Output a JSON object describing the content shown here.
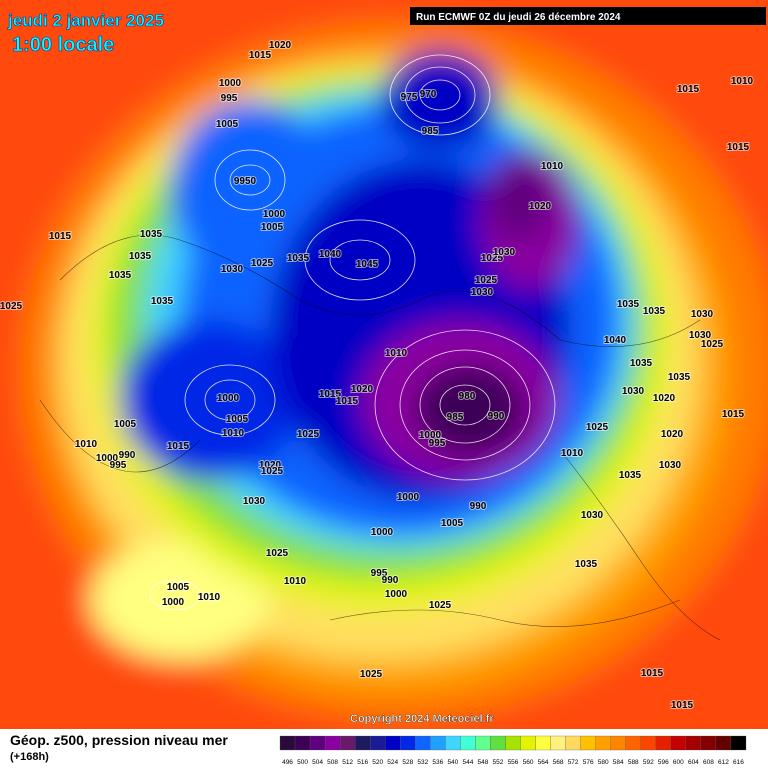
{
  "header": {
    "title": "jeudi 2 janvier 2025",
    "time": "1:00 locale",
    "run": "Run ECMWF 0Z du jeudi 26 décembre 2024"
  },
  "copyright": "Copyright 2024 Meteociel.fr",
  "footer": {
    "label": "Géop. z500, pression niveau mer",
    "lead": "(+168h)"
  },
  "colorbar": {
    "values": [
      496,
      500,
      504,
      508,
      512,
      516,
      520,
      524,
      528,
      532,
      536,
      540,
      544,
      548,
      552,
      556,
      560,
      564,
      568,
      572,
      576,
      580,
      584,
      588,
      592,
      596,
      600,
      604,
      608,
      612,
      616
    ],
    "colors": [
      "#2a0a3a",
      "#3c0058",
      "#60007e",
      "#8a00a0",
      "#6a1a6a",
      "#1e1a5e",
      "#1a1a94",
      "#0000c4",
      "#0028e6",
      "#1064ff",
      "#20a0ff",
      "#40d4ff",
      "#40ffd4",
      "#60ff90",
      "#60e040",
      "#a4e400",
      "#e4f400",
      "#ffff40",
      "#fff080",
      "#ffd860",
      "#ffc000",
      "#ffa000",
      "#ff8400",
      "#ff6400",
      "#ff4400",
      "#e42000",
      "#c40000",
      "#a40000",
      "#840000",
      "#640000",
      "#000000"
    ]
  },
  "pressure_labels": [
    "1020",
    "1015",
    "1000",
    "995",
    "1005",
    "9950",
    "1000",
    "1005",
    "1015",
    "1035",
    "1035",
    "1030",
    "1025",
    "1035",
    "1040",
    "1045",
    "1035",
    "1035",
    "1025",
    "975",
    "970",
    "985",
    "1010",
    "1020",
    "1025",
    "1030",
    "1025",
    "1030",
    "1015",
    "1010",
    "1015",
    "1035",
    "1035",
    "1030",
    "1030",
    "1025",
    "1040",
    "1010",
    "1020",
    "1015",
    "1015",
    "980",
    "985",
    "990",
    "1000",
    "995",
    "1000",
    "1005",
    "1010",
    "1005",
    "1010",
    "1000",
    "995",
    "990",
    "1015",
    "1020",
    "1025",
    "1025",
    "1030",
    "1010",
    "1025",
    "1035",
    "1030",
    "1035",
    "1020",
    "1015",
    "1020",
    "1030",
    "1035",
    "1030",
    "1035",
    "1000",
    "990",
    "1005",
    "1000",
    "1025",
    "1010",
    "995",
    "990",
    "1000",
    "1025",
    "1005",
    "1000",
    "1010",
    "1025",
    "1015",
    "1015"
  ]
}
